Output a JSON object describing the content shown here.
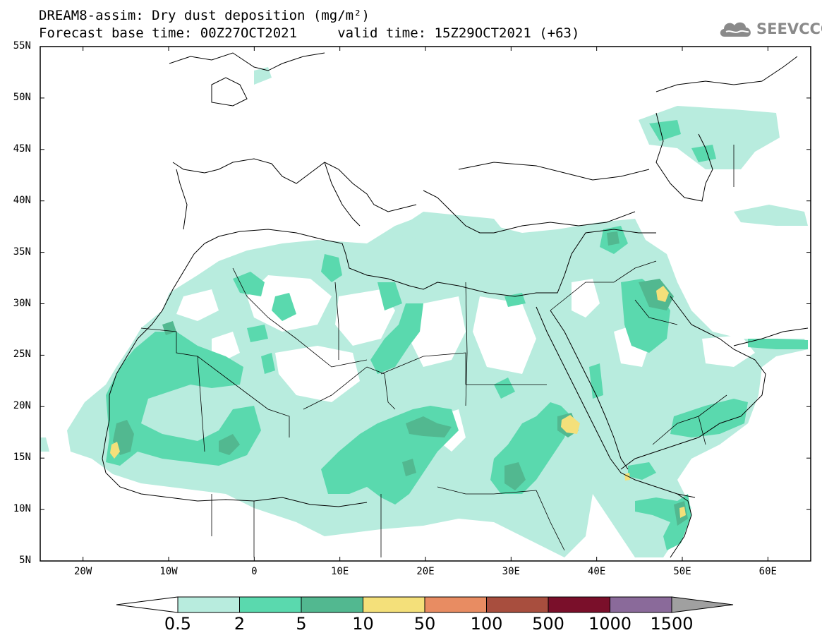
{
  "header": {
    "title_line1": "DREAM8-assim: Dry dust deposition (mg/m²)",
    "title_line2": "Forecast base time: 00Z27OCT2021     valid time: 15Z29OCT2021 (+63)",
    "logo_text": "SEEVCCC"
  },
  "map": {
    "lat_labels": [
      "55N",
      "50N",
      "45N",
      "40N",
      "35N",
      "30N",
      "25N",
      "20N",
      "15N",
      "10N",
      "5N"
    ],
    "lon_labels": [
      "20W",
      "10W",
      "0",
      "10E",
      "20E",
      "30E",
      "40E",
      "50E",
      "60E"
    ],
    "extent": {
      "lon_min": -25,
      "lon_max": 65,
      "lat_min": 5,
      "lat_max": 55
    }
  },
  "colorbar": {
    "levels": [
      "0.5",
      "2",
      "5",
      "10",
      "50",
      "100",
      "500",
      "1000",
      "1500"
    ],
    "colors": [
      "#ffffff",
      "#b8ecde",
      "#5ad9ae",
      "#52b890",
      "#f4e07a",
      "#e88c62",
      "#a84e3e",
      "#7a0f2a",
      "#8a6a9a",
      "#a0a0a0"
    ]
  },
  "colors": {
    "light": "#b8ecde",
    "medium": "#5ad9ae",
    "dark": "#52b890",
    "yellow": "#f4e07a"
  }
}
